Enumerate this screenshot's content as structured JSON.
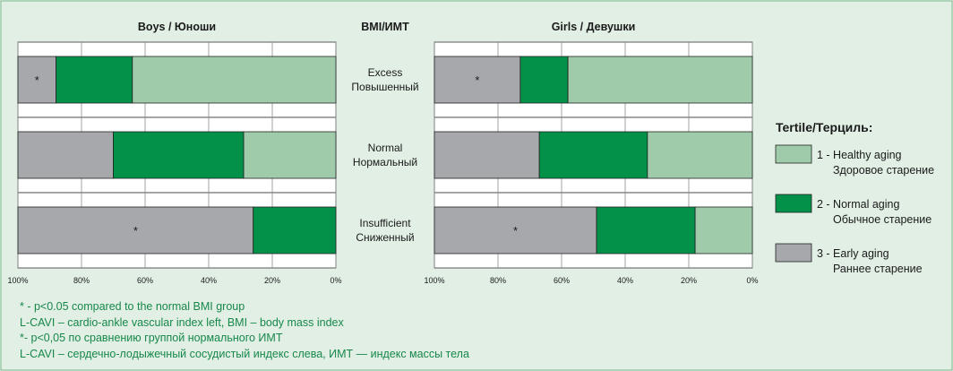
{
  "center_header": "BMI/ИМТ",
  "row_labels": [
    {
      "en": "Excess",
      "ru": "Повышенный"
    },
    {
      "en": "Normal",
      "ru": "Нормальный"
    },
    {
      "en": "Insufficient",
      "ru": "Сниженный"
    }
  ],
  "legend": {
    "title": "Tertile/Терциль:",
    "items": [
      {
        "en": "1 - Healthy aging",
        "ru": "Здоровое старение",
        "color": "#9fcbab"
      },
      {
        "en": "2 - Normal aging",
        "ru": "Обычное старение",
        "color": "#039049"
      },
      {
        "en": "3 - Early aging",
        "ru": "Раннее старение",
        "color": "#a7a8ab"
      }
    ]
  },
  "notes": [
    "* - p<0.05 compared to the normal BMI group",
    "L-CAVI – cardio-ankle vascular index left, BMI – body mass index",
    "*- p<0,05 по сравнению группой нормального ИМТ",
    "L-CAVI – сердечно-лодыжечный сосудистый индекс слева, ИМТ — индекс массы тела"
  ],
  "chart_data": [
    {
      "type": "bar",
      "title": "Boys / Юноши",
      "orientation": "horizontal-stacked",
      "x_axis": "reversed",
      "xlim": [
        0,
        100
      ],
      "ticks": [
        "100%",
        "80%",
        "60%",
        "40%",
        "20%",
        "0%"
      ],
      "categories": [
        "Excess",
        "Normal",
        "Insufficient"
      ],
      "series": [
        {
          "name": "1 - Healthy aging",
          "values": [
            64,
            29,
            0
          ]
        },
        {
          "name": "2 - Normal aging",
          "values": [
            24,
            41,
            26
          ]
        },
        {
          "name": "3 - Early aging",
          "values": [
            12,
            30,
            74
          ]
        }
      ],
      "annotations": [
        {
          "category": "Excess",
          "series": "3 - Early aging",
          "text": "*"
        },
        {
          "category": "Insufficient",
          "series": "3 - Early aging",
          "text": "*"
        }
      ]
    },
    {
      "type": "bar",
      "title": "Girls / Девушки",
      "orientation": "horizontal-stacked",
      "x_axis": "reversed",
      "xlim": [
        0,
        100
      ],
      "ticks": [
        "100%",
        "80%",
        "60%",
        "40%",
        "20%",
        "0%"
      ],
      "categories": [
        "Excess",
        "Normal",
        "Insufficient"
      ],
      "series": [
        {
          "name": "1 - Healthy aging",
          "values": [
            58,
            33,
            18
          ]
        },
        {
          "name": "2 - Normal aging",
          "values": [
            15,
            34,
            31
          ]
        },
        {
          "name": "3 - Early aging",
          "values": [
            27,
            33,
            51
          ]
        }
      ],
      "annotations": [
        {
          "category": "Excess",
          "series": "3 - Early aging",
          "text": "*"
        },
        {
          "category": "Insufficient",
          "series": "3 - Early aging",
          "text": "*"
        }
      ]
    }
  ]
}
